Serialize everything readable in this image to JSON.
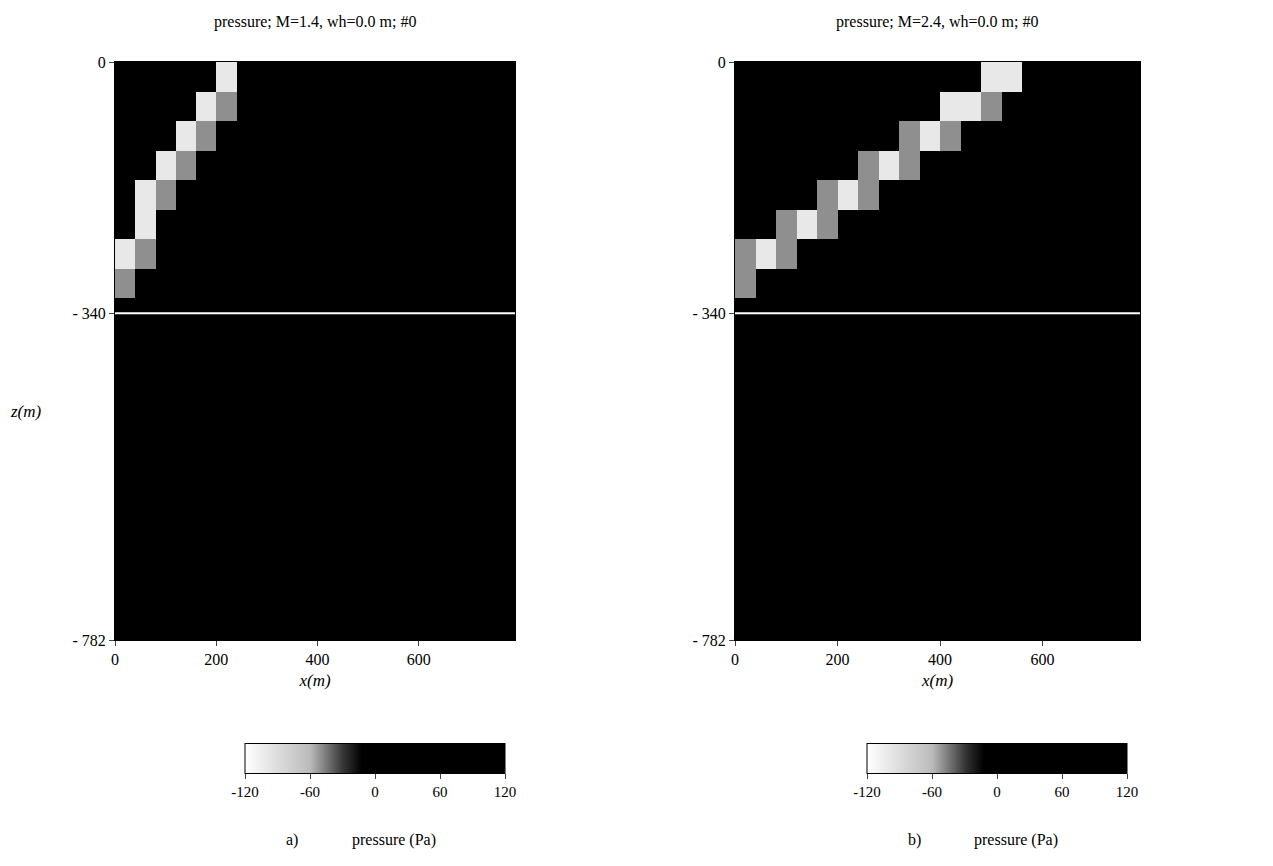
{
  "chart_data": [
    {
      "type": "heatmap",
      "title": "pressure; M=1.4, wh=0.0 m; #0",
      "xlabel": "x(m)",
      "ylabel": "z(m)",
      "panel_label": "a)",
      "x": [
        20,
        60,
        100,
        140,
        180,
        220,
        260,
        300,
        340,
        380,
        420,
        460,
        500,
        540,
        580,
        620,
        660,
        700,
        740,
        780
      ],
      "y": [
        -20,
        -60,
        -100,
        -140,
        -180,
        -220,
        -260,
        -300,
        -340,
        -380,
        -420,
        -460,
        -500,
        -540,
        -580,
        -620,
        -660,
        -700,
        -740,
        -780
      ],
      "cells": [
        [
          10,
          10,
          10,
          10,
          10,
          -100,
          10,
          10,
          10,
          10,
          10,
          10,
          10,
          10,
          10,
          10,
          10,
          10,
          10,
          10
        ],
        [
          10,
          10,
          10,
          10,
          -100,
          -50,
          10,
          10,
          10,
          10,
          10,
          10,
          10,
          10,
          10,
          10,
          10,
          10,
          10,
          10
        ],
        [
          10,
          10,
          10,
          -100,
          -50,
          10,
          10,
          10,
          10,
          10,
          10,
          10,
          10,
          10,
          10,
          10,
          10,
          10,
          10,
          10
        ],
        [
          10,
          10,
          -100,
          -50,
          10,
          10,
          10,
          10,
          10,
          10,
          10,
          10,
          10,
          10,
          10,
          10,
          10,
          10,
          10,
          10
        ],
        [
          10,
          -100,
          -50,
          10,
          10,
          10,
          10,
          10,
          10,
          10,
          10,
          10,
          10,
          10,
          10,
          10,
          10,
          10,
          10,
          10
        ],
        [
          10,
          -100,
          10,
          10,
          10,
          10,
          10,
          10,
          10,
          10,
          10,
          10,
          10,
          10,
          10,
          10,
          10,
          10,
          10,
          10
        ],
        [
          -100,
          -50,
          10,
          10,
          10,
          10,
          10,
          10,
          10,
          10,
          10,
          10,
          10,
          10,
          10,
          10,
          10,
          10,
          10,
          10
        ],
        [
          -50,
          10,
          10,
          10,
          10,
          10,
          10,
          10,
          10,
          10,
          10,
          10,
          10,
          10,
          10,
          10,
          10,
          10,
          10,
          10
        ],
        [
          10,
          10,
          10,
          10,
          10,
          10,
          10,
          10,
          10,
          10,
          10,
          10,
          10,
          10,
          10,
          10,
          10,
          10,
          10,
          10
        ],
        [
          10,
          10,
          10,
          10,
          10,
          10,
          10,
          10,
          10,
          10,
          10,
          10,
          10,
          10,
          10,
          10,
          10,
          10,
          10,
          10
        ],
        [
          10,
          10,
          10,
          10,
          10,
          10,
          10,
          10,
          10,
          10,
          10,
          10,
          10,
          10,
          10,
          10,
          10,
          10,
          10,
          10
        ],
        [
          10,
          10,
          10,
          10,
          10,
          10,
          10,
          10,
          10,
          10,
          10,
          10,
          10,
          10,
          10,
          10,
          10,
          10,
          10,
          10
        ],
        [
          10,
          10,
          10,
          10,
          10,
          10,
          10,
          10,
          10,
          10,
          10,
          10,
          10,
          10,
          10,
          10,
          10,
          10,
          10,
          10
        ],
        [
          10,
          10,
          10,
          10,
          10,
          10,
          10,
          10,
          10,
          10,
          10,
          10,
          10,
          10,
          10,
          10,
          10,
          10,
          10,
          10
        ],
        [
          10,
          10,
          10,
          10,
          10,
          10,
          10,
          10,
          10,
          10,
          10,
          10,
          10,
          10,
          10,
          10,
          10,
          10,
          10,
          10
        ],
        [
          10,
          10,
          10,
          10,
          10,
          10,
          10,
          10,
          10,
          10,
          10,
          10,
          10,
          10,
          10,
          10,
          10,
          10,
          10,
          10
        ],
        [
          10,
          10,
          10,
          10,
          10,
          10,
          10,
          10,
          10,
          10,
          10,
          10,
          10,
          10,
          10,
          10,
          10,
          10,
          10,
          10
        ],
        [
          10,
          10,
          10,
          10,
          10,
          10,
          10,
          10,
          10,
          10,
          10,
          10,
          10,
          10,
          10,
          10,
          10,
          10,
          10,
          10
        ],
        [
          10,
          10,
          10,
          10,
          10,
          10,
          10,
          10,
          10,
          10,
          10,
          10,
          10,
          10,
          10,
          10,
          10,
          10,
          10,
          10
        ],
        [
          10,
          10,
          10,
          10,
          10,
          10,
          10,
          10,
          10,
          10,
          10,
          10,
          10,
          10,
          10,
          10,
          10,
          10,
          10,
          10
        ]
      ],
      "hline": -340,
      "xlim": [
        0,
        790
      ],
      "xticks": [
        0,
        200,
        400,
        600
      ],
      "ylim": [
        -782,
        0
      ],
      "yticks": [
        0,
        {
          "value": -340,
          "label": "- 340"
        },
        {
          "value": -782,
          "label": "- 782"
        }
      ],
      "colorbar": {
        "title": "pressure (Pa)",
        "range": [
          -120,
          120
        ],
        "ticks": [
          -120,
          -60,
          0,
          60,
          120
        ]
      }
    },
    {
      "type": "heatmap",
      "title": "pressure; M=2.4, wh=0.0 m; #0",
      "xlabel": "x(m)",
      "panel_label": "b)",
      "x": [
        20,
        60,
        100,
        140,
        180,
        220,
        260,
        300,
        340,
        380,
        420,
        460,
        500,
        540,
        580,
        620,
        660,
        700,
        740,
        780
      ],
      "y": [
        -20,
        -60,
        -100,
        -140,
        -180,
        -220,
        -260,
        -300,
        -340,
        -380,
        -420,
        -460,
        -500,
        -540,
        -580,
        -620,
        -660,
        -700,
        -740,
        -780
      ],
      "cells": [
        [
          10,
          10,
          10,
          10,
          10,
          10,
          10,
          10,
          10,
          10,
          10,
          10,
          -100,
          -100,
          10,
          10,
          10,
          10,
          10,
          10
        ],
        [
          10,
          10,
          10,
          10,
          10,
          10,
          10,
          10,
          10,
          10,
          -100,
          -100,
          -50,
          10,
          10,
          10,
          10,
          10,
          10,
          10
        ],
        [
          10,
          10,
          10,
          10,
          10,
          10,
          10,
          10,
          -50,
          -100,
          -50,
          10,
          10,
          10,
          10,
          10,
          10,
          10,
          10,
          10
        ],
        [
          10,
          10,
          10,
          10,
          10,
          10,
          -50,
          -100,
          -50,
          10,
          10,
          10,
          10,
          10,
          10,
          10,
          10,
          10,
          10,
          10
        ],
        [
          10,
          10,
          10,
          10,
          -50,
          -100,
          -50,
          10,
          10,
          10,
          10,
          10,
          10,
          10,
          10,
          10,
          10,
          10,
          10,
          10
        ],
        [
          10,
          10,
          -50,
          -100,
          -50,
          10,
          10,
          10,
          10,
          10,
          10,
          10,
          10,
          10,
          10,
          10,
          10,
          10,
          10,
          10
        ],
        [
          -50,
          -100,
          -50,
          10,
          10,
          10,
          10,
          10,
          10,
          10,
          10,
          10,
          10,
          10,
          10,
          10,
          10,
          10,
          10,
          10
        ],
        [
          -50,
          10,
          10,
          10,
          10,
          10,
          10,
          10,
          10,
          10,
          10,
          10,
          10,
          10,
          10,
          10,
          10,
          10,
          10,
          10
        ],
        [
          10,
          10,
          10,
          10,
          10,
          10,
          10,
          10,
          10,
          10,
          10,
          10,
          10,
          10,
          10,
          10,
          10,
          10,
          10,
          10
        ],
        [
          10,
          10,
          10,
          10,
          10,
          10,
          10,
          10,
          10,
          10,
          10,
          10,
          10,
          10,
          10,
          10,
          10,
          10,
          10,
          10
        ],
        [
          10,
          10,
          10,
          10,
          10,
          10,
          10,
          10,
          10,
          10,
          10,
          10,
          10,
          10,
          10,
          10,
          10,
          10,
          10,
          10
        ],
        [
          10,
          10,
          10,
          10,
          10,
          10,
          10,
          10,
          10,
          10,
          10,
          10,
          10,
          10,
          10,
          10,
          10,
          10,
          10,
          10
        ],
        [
          10,
          10,
          10,
          10,
          10,
          10,
          10,
          10,
          10,
          10,
          10,
          10,
          10,
          10,
          10,
          10,
          10,
          10,
          10,
          10
        ],
        [
          10,
          10,
          10,
          10,
          10,
          10,
          10,
          10,
          10,
          10,
          10,
          10,
          10,
          10,
          10,
          10,
          10,
          10,
          10,
          10
        ],
        [
          10,
          10,
          10,
          10,
          10,
          10,
          10,
          10,
          10,
          10,
          10,
          10,
          10,
          10,
          10,
          10,
          10,
          10,
          10,
          10
        ],
        [
          10,
          10,
          10,
          10,
          10,
          10,
          10,
          10,
          10,
          10,
          10,
          10,
          10,
          10,
          10,
          10,
          10,
          10,
          10,
          10
        ],
        [
          10,
          10,
          10,
          10,
          10,
          10,
          10,
          10,
          10,
          10,
          10,
          10,
          10,
          10,
          10,
          10,
          10,
          10,
          10,
          10
        ],
        [
          10,
          10,
          10,
          10,
          10,
          10,
          10,
          10,
          10,
          10,
          10,
          10,
          10,
          10,
          10,
          10,
          10,
          10,
          10,
          10
        ],
        [
          10,
          10,
          10,
          10,
          10,
          10,
          10,
          10,
          10,
          10,
          10,
          10,
          10,
          10,
          10,
          10,
          10,
          10,
          10,
          10
        ],
        [
          10,
          10,
          10,
          10,
          10,
          10,
          10,
          10,
          10,
          10,
          10,
          10,
          10,
          10,
          10,
          10,
          10,
          10,
          10,
          10
        ]
      ],
      "hline": -340,
      "xlim": [
        0,
        790
      ],
      "xticks": [
        0,
        200,
        400,
        600
      ],
      "ylim": [
        -782,
        0
      ],
      "yticks": [
        0,
        {
          "value": -340,
          "label": "- 340"
        },
        {
          "value": -782,
          "label": "- 782"
        }
      ],
      "colorbar": {
        "title": "pressure (Pa)",
        "range": [
          -120,
          120
        ],
        "ticks": [
          -120,
          -60,
          0,
          60,
          120
        ]
      }
    }
  ]
}
